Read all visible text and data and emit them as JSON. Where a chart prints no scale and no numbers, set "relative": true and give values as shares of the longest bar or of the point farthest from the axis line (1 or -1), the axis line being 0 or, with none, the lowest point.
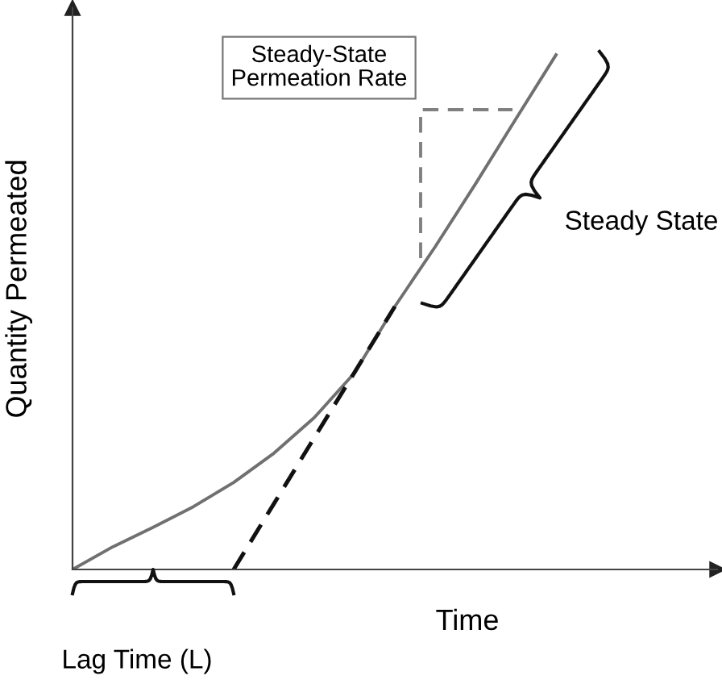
{
  "chart_data": {
    "type": "line",
    "relative": true,
    "xlabel": "Time",
    "ylabel": "Quantity Permeated",
    "categories": [
      null,
      null,
      null,
      null,
      null,
      null,
      null,
      null,
      null,
      null,
      null,
      null,
      null,
      null,
      null,
      null,
      null
    ],
    "series": [
      {
        "color": "#707070",
        "line_style": "solid",
        "values": [
          0,
          0.044,
          0.082,
          0.122,
          0.169,
          0.226,
          0.295,
          0.382,
          0.511,
          0.627,
          0.749,
          0.875,
          1,
          null,
          null,
          null,
          null
        ]
      },
      {
        "color": "#111111",
        "line_style": "dashed",
        "values": [
          null,
          null,
          null,
          null,
          0,
          0.128,
          0.256,
          0.383,
          0.511,
          null,
          null,
          null,
          null,
          null,
          null,
          null,
          null
        ]
      }
    ],
    "annotations": [
      "Steady-State Permeation Rate",
      "Steady State",
      "Lag Time (L)"
    ]
  }
}
